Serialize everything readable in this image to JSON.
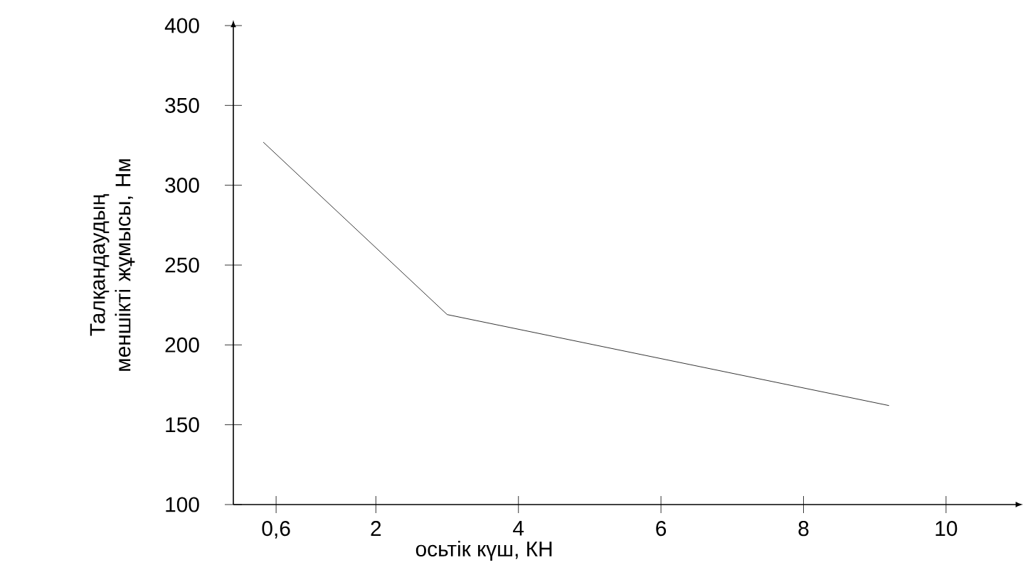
{
  "chart_data": {
    "type": "line",
    "xlabel": "осьтік күш, КН",
    "ylabel": "Талқандаудың меншікті жұмысы, Нм",
    "x": [
      0.42,
      3,
      9.2
    ],
    "values": [
      327,
      219,
      162
    ],
    "color": "#000000",
    "xlim": [
      0,
      11
    ],
    "ylim": [
      100,
      400
    ],
    "xticks": [
      {
        "value": 0.6,
        "label": "0,6"
      },
      2,
      4,
      6,
      8,
      10
    ],
    "yticks": [
      100,
      150,
      200,
      250,
      300,
      350,
      400
    ],
    "grid": false,
    "marker": "none",
    "line_style": "solid"
  }
}
